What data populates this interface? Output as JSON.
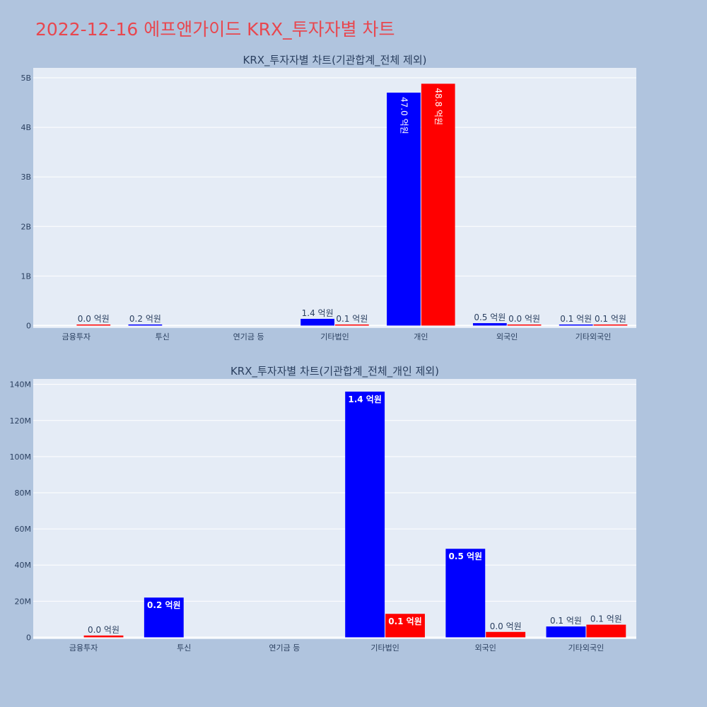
{
  "page": {
    "title": "2022-12-16 에프앤가이드 KRX_투자자별 차트",
    "title_color": "#e8474f",
    "background": "#b0c4de",
    "plot_background": "#e5ecf6"
  },
  "chart_data": [
    {
      "type": "bar",
      "title": "KRX_투자자별 차트(기관합계_전체 제외)",
      "categories": [
        "금융투자",
        "투신",
        "연기금 등",
        "기타법인",
        "개인",
        "외국인",
        "기타외국인"
      ],
      "ylim": [
        -50000000,
        5200000000
      ],
      "yticks": [
        0,
        1000000000,
        2000000000,
        3000000000,
        4000000000,
        5000000000
      ],
      "ytick_labels": [
        "0",
        "1B",
        "2B",
        "3B",
        "4B",
        "5B"
      ],
      "grid": true,
      "legend": "none",
      "series": [
        {
          "color": "#0000ff",
          "values": [
            null,
            22000000,
            null,
            136000000,
            4700000000,
            49000000,
            6000000
          ],
          "labels": [
            "",
            "0.2 억원",
            "",
            "1.4 억원",
            "47.0 억원",
            "0.5 억원",
            "0.1 억원"
          ]
        },
        {
          "color": "#ff0000",
          "values": [
            1000000,
            null,
            null,
            13000000,
            4880000000,
            3000000,
            7000000
          ],
          "labels": [
            "0.0 억원",
            "",
            "",
            "0.1 억원",
            "48.8 억원",
            "0.0 억원",
            "0.1 억원"
          ]
        }
      ]
    },
    {
      "type": "bar",
      "title": "KRX_투자자별 차트(기관합계_전체_개인 제외)",
      "categories": [
        "금융투자",
        "투신",
        "연기금 등",
        "기타법인",
        "외국인",
        "기타외국인"
      ],
      "ylim": [
        -1000000,
        143000000
      ],
      "yticks": [
        0,
        20000000,
        40000000,
        60000000,
        80000000,
        100000000,
        120000000,
        140000000
      ],
      "ytick_labels": [
        "0",
        "20M",
        "40M",
        "60M",
        "80M",
        "100M",
        "120M",
        "140M"
      ],
      "grid": true,
      "legend": "none",
      "series": [
        {
          "color": "#0000ff",
          "values": [
            null,
            22000000,
            null,
            136000000,
            49000000,
            6000000
          ],
          "labels": [
            "",
            "0.2 억원",
            "",
            "1.4 억원",
            "0.5 억원",
            "0.1 억원"
          ]
        },
        {
          "color": "#ff0000",
          "values": [
            1000000,
            null,
            null,
            13000000,
            3000000,
            7000000
          ],
          "labels": [
            "0.0 억원",
            "",
            "",
            "0.1 억원",
            "0.0 억원",
            "0.1 억원"
          ]
        }
      ]
    }
  ]
}
